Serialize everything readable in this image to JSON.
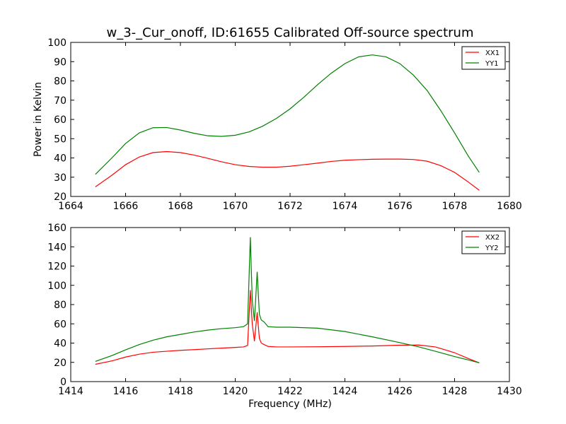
{
  "chart_data": [
    {
      "type": "line",
      "title": "w_3-_Cur_onoff, ID:61655 Calibrated Off-source spectrum",
      "xlabel": "",
      "ylabel": "Power in Kelvin",
      "xlim": [
        1664,
        1680
      ],
      "ylim": [
        20,
        100
      ],
      "xticks": [
        1664,
        1666,
        1668,
        1670,
        1672,
        1674,
        1676,
        1678,
        1680
      ],
      "yticks": [
        20,
        30,
        40,
        50,
        60,
        70,
        80,
        90,
        100
      ],
      "legend_position": "top-right",
      "series": [
        {
          "name": "XX1",
          "color": "#ff0000",
          "x": [
            1664.9,
            1665.5,
            1666.0,
            1666.5,
            1667.0,
            1667.5,
            1668.0,
            1668.5,
            1669.0,
            1669.5,
            1670.0,
            1670.5,
            1671.0,
            1671.5,
            1672.0,
            1672.5,
            1673.0,
            1673.5,
            1674.0,
            1674.5,
            1675.0,
            1675.5,
            1676.0,
            1676.5,
            1677.0,
            1677.5,
            1678.0,
            1678.5,
            1678.9
          ],
          "y": [
            25.0,
            31.0,
            36.5,
            40.5,
            42.8,
            43.3,
            42.8,
            41.5,
            39.8,
            38.0,
            36.5,
            35.6,
            35.2,
            35.2,
            35.7,
            36.5,
            37.3,
            38.2,
            38.8,
            39.1,
            39.3,
            39.4,
            39.4,
            39.2,
            38.3,
            36.0,
            32.5,
            27.5,
            23.2
          ]
        },
        {
          "name": "YY1",
          "color": "#008000",
          "x": [
            1664.9,
            1665.5,
            1666.0,
            1666.5,
            1667.0,
            1667.5,
            1668.0,
            1668.5,
            1669.0,
            1669.5,
            1670.0,
            1670.5,
            1671.0,
            1671.5,
            1672.0,
            1672.5,
            1673.0,
            1673.5,
            1674.0,
            1674.5,
            1675.0,
            1675.5,
            1676.0,
            1676.5,
            1677.0,
            1677.5,
            1678.0,
            1678.5,
            1678.9
          ],
          "y": [
            31.5,
            40.0,
            47.5,
            53.0,
            55.7,
            55.8,
            54.5,
            52.8,
            51.5,
            51.2,
            51.8,
            53.5,
            56.5,
            60.5,
            65.5,
            71.5,
            78.0,
            84.0,
            89.0,
            92.5,
            93.5,
            92.5,
            89.0,
            83.0,
            75.0,
            64.5,
            53.0,
            41.0,
            32.5
          ]
        }
      ]
    },
    {
      "type": "line",
      "title": "",
      "xlabel": "Frequency (MHz)",
      "ylabel": "",
      "xlim": [
        1414,
        1430
      ],
      "ylim": [
        0,
        160
      ],
      "xticks": [
        1414,
        1416,
        1418,
        1420,
        1422,
        1424,
        1426,
        1428,
        1430
      ],
      "yticks": [
        0,
        20,
        40,
        60,
        80,
        100,
        120,
        140,
        160
      ],
      "legend_position": "top-right",
      "series": [
        {
          "name": "XX2",
          "color": "#ff0000",
          "x": [
            1414.9,
            1415.5,
            1416.0,
            1416.5,
            1417.0,
            1417.5,
            1418.0,
            1418.5,
            1419.0,
            1419.5,
            1420.0,
            1420.3,
            1420.45,
            1420.55,
            1420.62,
            1420.7,
            1420.8,
            1420.88,
            1420.95,
            1421.05,
            1421.2,
            1421.5,
            1422.0,
            1423.0,
            1424.0,
            1425.0,
            1426.0,
            1426.7,
            1427.3,
            1428.0,
            1428.5,
            1428.9
          ],
          "y": [
            18.0,
            21.5,
            25.5,
            28.5,
            30.5,
            31.5,
            32.5,
            33.2,
            34.0,
            34.8,
            35.5,
            36.0,
            37.5,
            95.0,
            60.0,
            42.0,
            72.0,
            45.0,
            40.0,
            38.5,
            36.5,
            36.0,
            36.0,
            36.2,
            36.5,
            37.0,
            37.8,
            38.0,
            36.0,
            30.0,
            24.0,
            19.5
          ]
        },
        {
          "name": "YY2",
          "color": "#008000",
          "x": [
            1414.9,
            1415.5,
            1416.0,
            1416.5,
            1417.0,
            1417.5,
            1418.0,
            1418.5,
            1419.0,
            1419.5,
            1420.0,
            1420.3,
            1420.45,
            1420.55,
            1420.62,
            1420.7,
            1420.8,
            1420.88,
            1420.95,
            1421.05,
            1421.2,
            1421.5,
            1422.0,
            1423.0,
            1424.0,
            1425.0,
            1426.0,
            1426.7,
            1427.3,
            1428.0,
            1428.5,
            1428.9
          ],
          "y": [
            21.0,
            27.0,
            33.0,
            38.5,
            43.0,
            46.5,
            49.0,
            51.5,
            53.5,
            55.0,
            56.0,
            57.0,
            60.0,
            150.0,
            85.0,
            63.0,
            114.0,
            70.0,
            64.0,
            62.0,
            57.0,
            56.5,
            56.5,
            55.5,
            52.0,
            46.5,
            40.5,
            36.0,
            31.5,
            26.0,
            22.5,
            19.5
          ]
        }
      ]
    }
  ]
}
